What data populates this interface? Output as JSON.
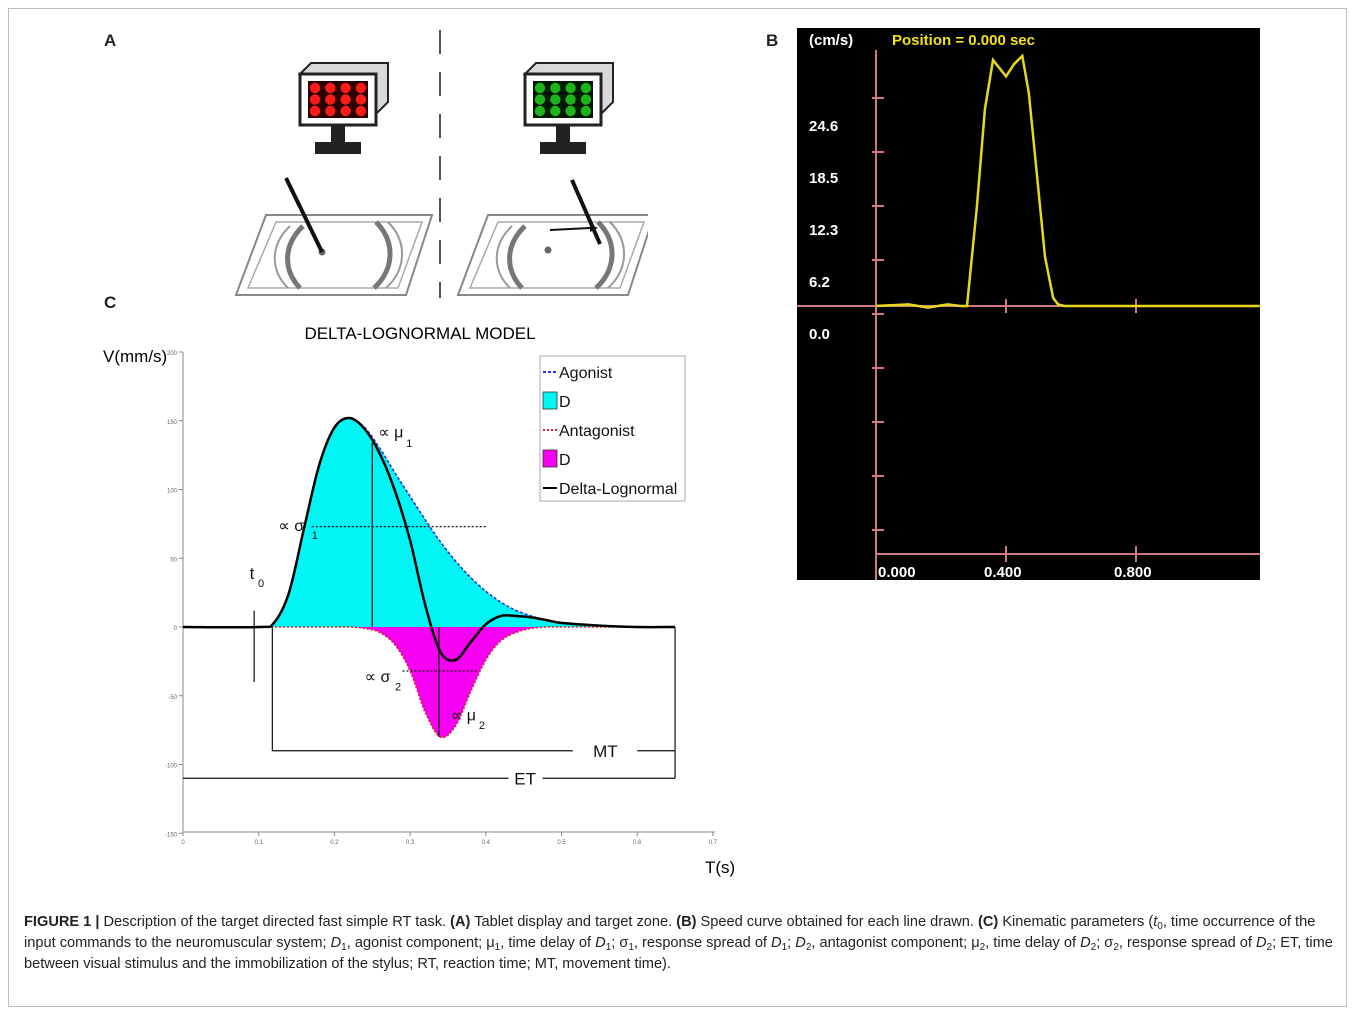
{
  "panels": {
    "a_label": "A",
    "b_label": "B",
    "c_label": "C"
  },
  "panel_b": {
    "unit_label": "(cm/s)",
    "position_label": "Position = 0.000 sec",
    "y_tick_labels": [
      "24.6",
      "18.5",
      "12.3",
      "6.2",
      "0.0"
    ],
    "x_tick_labels": [
      "0.000",
      "0.400",
      "0.800"
    ],
    "colors": {
      "background": "#000000",
      "axis": "#d27a7a",
      "curve": "#e6d81c",
      "header_text": "#f2e218"
    }
  },
  "panel_c": {
    "title": "DELTA-LOGNORMAL MODEL",
    "ylabel": "V(mm/s)",
    "xlabel": "T(s)",
    "legend": [
      "Agonist",
      "D",
      "Antagonist",
      "D",
      "Delta-Lognormal"
    ],
    "annotations": {
      "t0_main": "t",
      "t0_sub": "0",
      "mu1_main": "∝ μ",
      "mu1_sub": "1",
      "sigma1_main": "∝ σ",
      "sigma1_sub": "1",
      "sigma2_main": "∝ σ",
      "sigma2_sub": "2",
      "mu2_main": "∝ μ",
      "mu2_sub": "2",
      "mt": "MT",
      "et": "ET"
    },
    "y_tick_labels": [
      "200",
      "150",
      "100",
      "50",
      "0",
      "-50",
      "-100",
      "-150"
    ],
    "x_tick_labels": [
      "0",
      "0.1",
      "0.2",
      "0.3",
      "0.4",
      "0.5",
      "0.6",
      "0.7"
    ],
    "colors": {
      "agonist_fill": "#00f5f5",
      "antagonist_fill": "#f500f0",
      "agonist_line": "#2233dd",
      "antagonist_line": "#e02020",
      "sum_line": "#000000"
    }
  },
  "caption": {
    "figure_label": "FIGURE 1 |",
    "intro": " Description of the target directed fast simple RT task. ",
    "a_tag": "(A)",
    "a_text": " Tablet display and target zone. ",
    "b_tag": "(B)",
    "b_text": " Speed curve obtained for each line drawn. ",
    "c_tag": "(C)",
    "c_text_1": " Kinematic parameters (",
    "t0_main": "t",
    "t0_sub": "0",
    "c_text_2": ", time occurrence of the input commands to the neuromuscular system; ",
    "d1_main": "D",
    "d1_sub": "1",
    "c_text_3": ", agonist component; μ",
    "mu1_sub": "1",
    "c_text_4": ", time delay of ",
    "d1b_main": "D",
    "d1b_sub": "1",
    "c_text_5": "; σ",
    "s1_sub": "1",
    "c_text_6": ", response spread of ",
    "d1c_main": "D",
    "d1c_sub": "1",
    "c_text_7": "; ",
    "d2_main": "D",
    "d2_sub": "2",
    "c_text_8": ", antagonist component; μ",
    "mu2_sub": "2",
    "c_text_9": ", time delay of ",
    "d2b_main": "D",
    "d2b_sub": "2",
    "c_text_10": "; σ",
    "s2_sub": "2",
    "c_text_11": ", response spread of ",
    "d2c_main": "D",
    "d2c_sub": "2",
    "c_text_12": "; ET, time between visual stimulus and the immobilization of the stylus; RT, reaction time; MT, movement time)."
  },
  "chart_data": [
    {
      "type": "line",
      "panel": "B",
      "title": "Position = 0.000 sec",
      "ylabel": "(cm/s)",
      "xlabel": "",
      "x_ticks": [
        0.0,
        0.4,
        0.8
      ],
      "y_ticks": [
        0.0,
        6.2,
        12.3,
        18.5,
        24.6
      ],
      "xlim": [
        0,
        1.18
      ],
      "ylim": [
        -34,
        34
      ],
      "grid": false,
      "series": [
        {
          "x": [
            0.0,
            0.1,
            0.16,
            0.22,
            0.26,
            0.28,
            0.31,
            0.335,
            0.36,
            0.38,
            0.4,
            0.425,
            0.45,
            0.47,
            0.49,
            0.52,
            0.545,
            0.56,
            0.58,
            0.62,
            0.7,
            1.18
          ],
          "y": [
            0.0,
            0.2,
            -0.2,
            0.2,
            0.0,
            0.0,
            12.0,
            24.0,
            30.0,
            29.0,
            28.0,
            29.5,
            30.5,
            26.0,
            18.0,
            6.0,
            1.0,
            0.2,
            0.0,
            0.0,
            0.0,
            0.0
          ]
        }
      ]
    },
    {
      "type": "area",
      "panel": "C",
      "title": "DELTA-LOGNORMAL MODEL",
      "xlabel": "T(s)",
      "ylabel": "V(mm/s)",
      "xlim": [
        0,
        0.7
      ],
      "ylim": [
        -150,
        200
      ],
      "grid": false,
      "legend_position": "top-right",
      "x": [
        0.0,
        0.1,
        0.12,
        0.14,
        0.16,
        0.18,
        0.2,
        0.22,
        0.24,
        0.26,
        0.28,
        0.3,
        0.32,
        0.34,
        0.36,
        0.38,
        0.4,
        0.42,
        0.44,
        0.46,
        0.48,
        0.5,
        0.55,
        0.6,
        0.65
      ],
      "series": [
        {
          "name": "Agonist",
          "values": [
            0,
            0,
            3,
            25,
            72,
            118,
            145,
            152,
            145,
            130,
            112,
            95,
            78,
            62,
            48,
            36,
            26,
            18,
            12,
            8,
            5,
            3,
            1,
            0,
            0
          ]
        },
        {
          "name": "Antagonist",
          "values": [
            0,
            0,
            0,
            0,
            0,
            0,
            0,
            0,
            -1,
            -4,
            -13,
            -32,
            -62,
            -80,
            -72,
            -47,
            -24,
            -10,
            -4,
            -1,
            0,
            0,
            0,
            0,
            0
          ]
        },
        {
          "name": "Delta-Lognormal",
          "values": [
            0,
            0,
            3,
            25,
            72,
            118,
            145,
            152,
            144,
            126,
            99,
            63,
            16,
            -18,
            -24,
            -11,
            2,
            8,
            8,
            7,
            5,
            3,
            1,
            0,
            0
          ]
        }
      ]
    }
  ]
}
